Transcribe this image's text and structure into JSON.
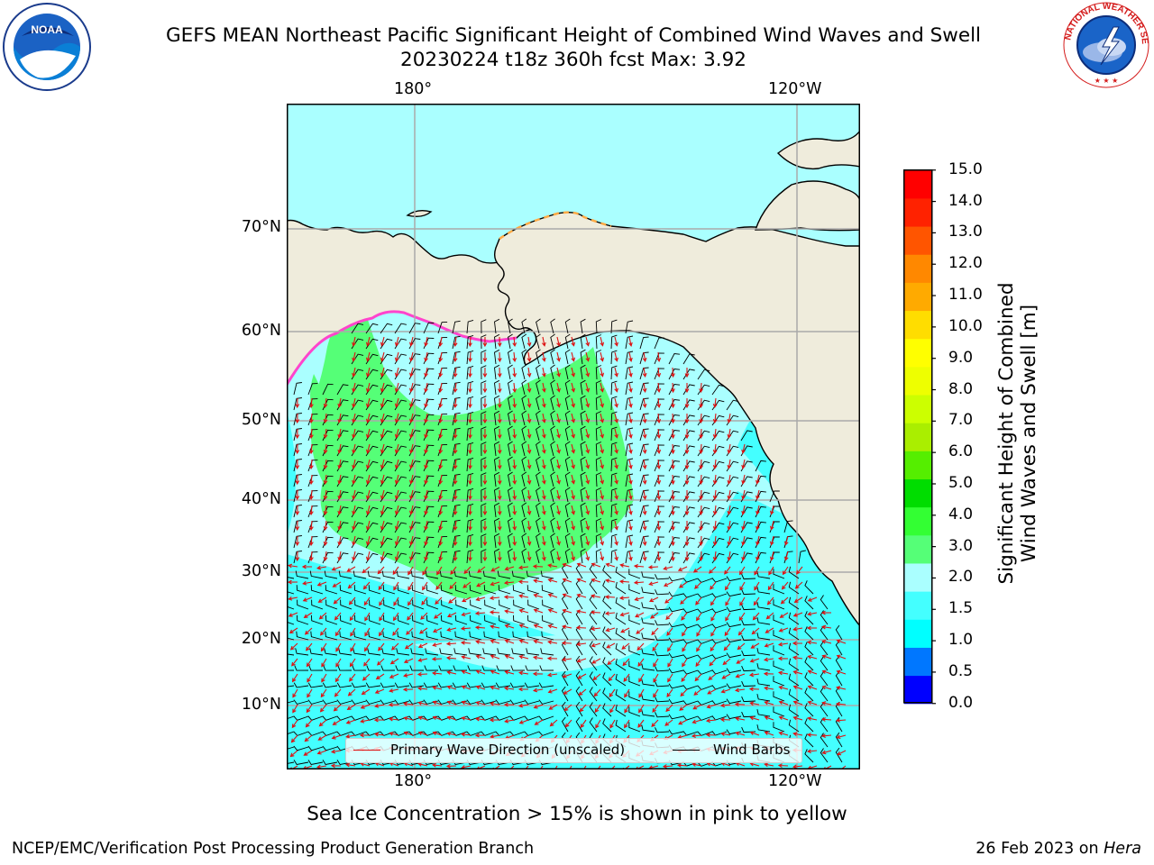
{
  "header": {
    "title_line1": "GEFS MEAN Northeast Pacific Significant Height of Combined Wind Waves and Swell",
    "title_line2": "20230224 t18z 360h fcst   Max: 3.92"
  },
  "logos": {
    "left": {
      "name": "noaa-logo",
      "text": "NOAA",
      "ring_text": "NATIONAL OCEANIC AND ATMOSPHERIC ADMINISTRATION · U.S. DEPARTMENT OF COMMERCE"
    },
    "right": {
      "name": "nws-logo",
      "ring_text": "NATIONAL WEATHER SERVICE"
    }
  },
  "map": {
    "lon_labels_top": [
      "180°",
      "120°W"
    ],
    "lon_labels_bottom": [
      "180°",
      "120°W"
    ],
    "lat_labels": [
      "70°N",
      "60°N",
      "50°N",
      "40°N",
      "30°N",
      "20°N",
      "10°N"
    ],
    "land_color": "#efecdc",
    "ocean_base_color": "#aaffff",
    "high_wave_color": "#55ff77",
    "coastal_color": "#44ffff",
    "legend": {
      "wave_label": "Primary Wave Direction (unscaled)",
      "wind_label": "Wind Barbs",
      "wave_color": "#dd1111",
      "wind_color": "#000000"
    }
  },
  "colorbar": {
    "label": "Significant Height of Combined Wind Waves and Swell [m]",
    "label_line1": "Significant Height of Combined",
    "label_line2": "Wind Waves and Swell [m]",
    "ticks": [
      "15.0",
      "14.0",
      "13.0",
      "12.0",
      "11.0",
      "10.0",
      "9.0",
      "8.0",
      "7.0",
      "6.0",
      "5.0",
      "4.0",
      "3.0",
      "2.0",
      "1.5",
      "1.0",
      "0.5",
      "0.0"
    ],
    "colors": [
      "#0000ff",
      "#0077ff",
      "#00ffff",
      "#44ffff",
      "#aaffff",
      "#55ff77",
      "#33ff33",
      "#00dd00",
      "#55ee00",
      "#aaee00",
      "#ccff00",
      "#eeff00",
      "#ffff00",
      "#ffdd00",
      "#ffaa00",
      "#ff8800",
      "#ff5500",
      "#ff2200",
      "#ff0000"
    ]
  },
  "footer": {
    "note": "Sea Ice Concentration > 15% is shown in pink to yellow",
    "left": "NCEP/EMC/Verification Post Processing Product Generation Branch",
    "right_prefix": "26 Feb 2023 on ",
    "right_host": "Hera"
  }
}
